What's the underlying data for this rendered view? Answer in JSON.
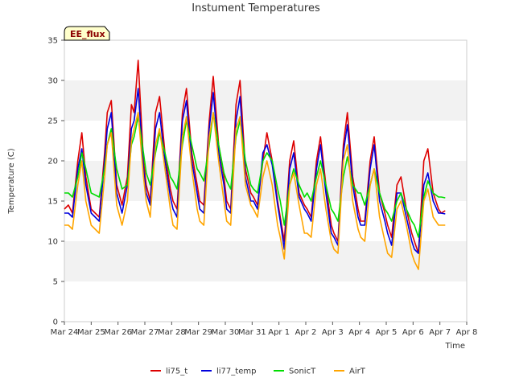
{
  "chart_data": {
    "type": "line",
    "title": "Instument Temperatures",
    "xlabel": "Time",
    "ylabel": "Temperature (C)",
    "ylim": [
      0,
      35
    ],
    "yticks": [
      0,
      5,
      10,
      15,
      20,
      25,
      30,
      35
    ],
    "xlim": [
      0,
      15
    ],
    "xticks": [
      {
        "v": 0,
        "label": "Mar 24"
      },
      {
        "v": 1,
        "label": "Mar 25"
      },
      {
        "v": 2,
        "label": "Mar 26"
      },
      {
        "v": 3,
        "label": "Mar 27"
      },
      {
        "v": 4,
        "label": "Mar 28"
      },
      {
        "v": 5,
        "label": "Mar 29"
      },
      {
        "v": 6,
        "label": "Mar 30"
      },
      {
        "v": 7,
        "label": "Mar 31"
      },
      {
        "v": 8,
        "label": "Apr 1"
      },
      {
        "v": 9,
        "label": "Apr 2"
      },
      {
        "v": 10,
        "label": "Apr 3"
      },
      {
        "v": 11,
        "label": "Apr 4"
      },
      {
        "v": 12,
        "label": "Apr 5"
      },
      {
        "v": 13,
        "label": "Apr 6"
      },
      {
        "v": 14,
        "label": "Apr 7"
      },
      {
        "v": 15,
        "label": "Apr 8"
      }
    ],
    "grid": "horizontal bands",
    "legend_position": "bottom",
    "annotation": "EE_flux",
    "series": [
      {
        "name": "li75_t",
        "color": "#dd0000",
        "x": [
          0.0,
          0.15,
          0.3,
          0.5,
          0.65,
          0.8,
          1.0,
          1.3,
          1.5,
          1.6,
          1.75,
          1.95,
          2.15,
          2.35,
          2.5,
          2.6,
          2.75,
          2.95,
          3.05,
          3.2,
          3.4,
          3.55,
          3.75,
          3.95,
          4.05,
          4.2,
          4.4,
          4.55,
          4.75,
          4.95,
          5.05,
          5.2,
          5.4,
          5.55,
          5.75,
          5.95,
          6.05,
          6.2,
          6.4,
          6.55,
          6.75,
          6.95,
          7.05,
          7.2,
          7.4,
          7.55,
          7.75,
          7.95,
          8.05,
          8.2,
          8.4,
          8.55,
          8.75,
          8.95,
          9.05,
          9.2,
          9.4,
          9.55,
          9.75,
          9.95,
          10.05,
          10.2,
          10.4,
          10.55,
          10.75,
          10.95,
          11.05,
          11.2,
          11.4,
          11.55,
          11.75,
          11.95,
          12.05,
          12.2,
          12.4,
          12.55,
          12.75,
          12.95,
          13.05,
          13.2,
          13.4,
          13.55,
          13.75,
          13.95,
          14.05,
          14.2
        ],
        "y": [
          14.0,
          14.5,
          13.5,
          20.0,
          23.5,
          18.0,
          14.0,
          13.0,
          21.0,
          26.0,
          27.5,
          17.0,
          14.5,
          18.0,
          27.0,
          26.0,
          32.5,
          20.0,
          17.0,
          15.0,
          26.0,
          28.0,
          21.0,
          16.5,
          15.0,
          14.0,
          26.0,
          29.0,
          21.0,
          17.0,
          15.0,
          14.5,
          25.0,
          30.5,
          22.0,
          18.0,
          15.0,
          14.0,
          27.0,
          30.0,
          19.0,
          16.0,
          15.5,
          14.5,
          20.0,
          23.5,
          20.0,
          15.0,
          13.0,
          10.0,
          20.0,
          22.5,
          16.0,
          14.5,
          14.0,
          13.0,
          20.0,
          23.0,
          17.0,
          12.0,
          11.0,
          10.0,
          22.0,
          26.0,
          18.0,
          14.0,
          12.5,
          12.5,
          20.0,
          23.0,
          16.0,
          13.5,
          12.0,
          10.5,
          17.0,
          18.0,
          14.0,
          11.0,
          10.0,
          8.5,
          20.0,
          21.5,
          16.0,
          14.0,
          13.5,
          13.8
        ]
      },
      {
        "name": "li77_temp",
        "color": "#0000dd",
        "x": [
          0.0,
          0.15,
          0.3,
          0.5,
          0.65,
          0.8,
          1.0,
          1.3,
          1.5,
          1.6,
          1.75,
          1.95,
          2.15,
          2.35,
          2.5,
          2.6,
          2.75,
          2.95,
          3.05,
          3.2,
          3.4,
          3.55,
          3.75,
          3.95,
          4.05,
          4.2,
          4.4,
          4.55,
          4.75,
          4.95,
          5.05,
          5.2,
          5.4,
          5.55,
          5.75,
          5.95,
          6.05,
          6.2,
          6.4,
          6.55,
          6.75,
          6.95,
          7.05,
          7.2,
          7.4,
          7.55,
          7.75,
          7.95,
          8.05,
          8.2,
          8.4,
          8.55,
          8.75,
          8.95,
          9.05,
          9.2,
          9.4,
          9.55,
          9.75,
          9.95,
          10.05,
          10.2,
          10.4,
          10.55,
          10.75,
          10.95,
          11.05,
          11.2,
          11.4,
          11.55,
          11.75,
          11.95,
          12.05,
          12.2,
          12.4,
          12.55,
          12.75,
          12.95,
          13.05,
          13.2,
          13.4,
          13.55,
          13.75,
          13.95,
          14.05,
          14.2
        ],
        "y": [
          13.5,
          13.5,
          13.0,
          19.0,
          21.5,
          17.0,
          13.5,
          12.5,
          20.0,
          24.0,
          26.0,
          16.0,
          13.5,
          17.0,
          24.0,
          25.0,
          29.0,
          19.0,
          16.0,
          14.5,
          24.0,
          26.0,
          20.0,
          15.5,
          14.0,
          13.0,
          25.0,
          27.5,
          20.0,
          16.0,
          14.0,
          13.5,
          24.0,
          28.5,
          21.0,
          17.0,
          14.0,
          13.5,
          25.0,
          28.0,
          18.0,
          15.0,
          15.0,
          14.0,
          21.0,
          22.0,
          19.5,
          14.5,
          12.5,
          9.0,
          19.0,
          21.0,
          15.5,
          14.0,
          13.5,
          12.5,
          19.0,
          22.0,
          16.0,
          11.0,
          10.5,
          9.5,
          21.0,
          24.5,
          17.0,
          13.0,
          12.0,
          12.0,
          19.0,
          22.0,
          15.0,
          12.5,
          11.0,
          9.5,
          16.0,
          16.0,
          13.0,
          10.0,
          9.0,
          8.5,
          17.0,
          18.5,
          15.0,
          13.5,
          13.5,
          13.4
        ]
      },
      {
        "name": "SonicT",
        "color": "#00dd00",
        "x": [
          0.0,
          0.15,
          0.3,
          0.5,
          0.65,
          0.8,
          1.0,
          1.3,
          1.5,
          1.6,
          1.75,
          1.95,
          2.15,
          2.35,
          2.5,
          2.6,
          2.75,
          2.95,
          3.05,
          3.2,
          3.4,
          3.55,
          3.75,
          3.95,
          4.05,
          4.2,
          4.4,
          4.55,
          4.75,
          4.95,
          5.05,
          5.2,
          5.4,
          5.55,
          5.75,
          5.95,
          6.05,
          6.2,
          6.4,
          6.55,
          6.75,
          6.95,
          7.05,
          7.2,
          7.4,
          7.55,
          7.75,
          7.95,
          8.05,
          8.2,
          8.4,
          8.55,
          8.75,
          8.95,
          9.05,
          9.2,
          9.4,
          9.55,
          9.75,
          9.95,
          10.05,
          10.2,
          10.4,
          10.55,
          10.75,
          10.95,
          11.05,
          11.2,
          11.4,
          11.55,
          11.75,
          11.95,
          12.05,
          12.2,
          12.4,
          12.55,
          12.75,
          12.95,
          13.05,
          13.2,
          13.4,
          13.55,
          13.75,
          13.95,
          14.05,
          14.2
        ],
        "y": [
          16.0,
          16.0,
          15.5,
          18.0,
          21.0,
          19.0,
          16.0,
          15.5,
          19.0,
          22.0,
          24.0,
          19.0,
          16.5,
          17.0,
          22.0,
          23.0,
          25.5,
          21.0,
          18.5,
          17.0,
          21.0,
          23.5,
          21.0,
          18.0,
          17.5,
          16.5,
          22.0,
          25.0,
          22.0,
          19.0,
          18.5,
          17.5,
          22.0,
          26.0,
          22.0,
          18.5,
          17.5,
          16.5,
          23.0,
          25.0,
          20.0,
          17.0,
          16.5,
          16.0,
          20.0,
          21.0,
          20.0,
          16.5,
          15.0,
          12.0,
          17.0,
          19.0,
          17.0,
          15.5,
          16.0,
          15.0,
          18.0,
          20.0,
          17.0,
          14.0,
          13.5,
          12.5,
          18.0,
          20.5,
          17.0,
          16.0,
          16.0,
          14.5,
          17.0,
          19.0,
          16.0,
          14.0,
          13.5,
          12.5,
          15.0,
          16.0,
          14.0,
          12.5,
          12.0,
          10.5,
          15.5,
          17.5,
          16.0,
          15.5,
          15.5,
          15.4
        ]
      },
      {
        "name": "AirT",
        "color": "#ffa500",
        "x": [
          0.0,
          0.15,
          0.3,
          0.5,
          0.65,
          0.8,
          1.0,
          1.3,
          1.5,
          1.6,
          1.75,
          1.95,
          2.15,
          2.35,
          2.5,
          2.6,
          2.75,
          2.95,
          3.05,
          3.2,
          3.4,
          3.55,
          3.75,
          3.95,
          4.05,
          4.2,
          4.4,
          4.55,
          4.75,
          4.95,
          5.05,
          5.2,
          5.4,
          5.55,
          5.75,
          5.95,
          6.05,
          6.2,
          6.4,
          6.55,
          6.75,
          6.95,
          7.05,
          7.2,
          7.4,
          7.55,
          7.75,
          7.95,
          8.05,
          8.2,
          8.4,
          8.55,
          8.75,
          8.95,
          9.05,
          9.2,
          9.4,
          9.55,
          9.75,
          9.95,
          10.05,
          10.2,
          10.4,
          10.55,
          10.75,
          10.95,
          11.05,
          11.2,
          11.4,
          11.55,
          11.75,
          11.95,
          12.05,
          12.2,
          12.4,
          12.55,
          12.75,
          12.95,
          13.05,
          13.2,
          13.4,
          13.55,
          13.75,
          13.95,
          14.05,
          14.2
        ],
        "y": [
          12.0,
          12.0,
          11.5,
          17.0,
          20.0,
          15.0,
          12.0,
          11.0,
          18.0,
          22.0,
          23.5,
          14.5,
          12.0,
          15.0,
          22.5,
          24.0,
          26.0,
          18.0,
          15.0,
          13.0,
          22.0,
          24.0,
          19.0,
          14.0,
          12.0,
          11.5,
          23.0,
          25.5,
          19.0,
          14.0,
          12.5,
          12.0,
          23.0,
          26.0,
          20.0,
          15.0,
          12.5,
          12.0,
          24.0,
          25.5,
          17.0,
          14.5,
          14.0,
          13.0,
          18.0,
          20.0,
          17.0,
          12.0,
          10.5,
          7.8,
          17.0,
          18.5,
          14.5,
          11.0,
          11.0,
          10.5,
          17.0,
          19.0,
          14.0,
          10.0,
          9.0,
          8.5,
          20.0,
          22.0,
          15.0,
          11.5,
          10.5,
          10.0,
          17.0,
          19.0,
          13.0,
          10.0,
          8.5,
          8.0,
          14.0,
          15.0,
          12.0,
          8.5,
          7.5,
          6.5,
          15.0,
          16.5,
          13.0,
          12.0,
          12.0,
          12.0
        ]
      }
    ]
  }
}
